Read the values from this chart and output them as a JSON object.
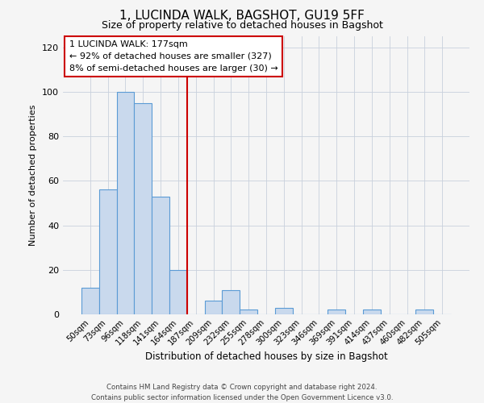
{
  "title": "1, LUCINDA WALK, BAGSHOT, GU19 5FF",
  "subtitle": "Size of property relative to detached houses in Bagshot",
  "xlabel": "Distribution of detached houses by size in Bagshot",
  "ylabel": "Number of detached properties",
  "bar_labels": [
    "50sqm",
    "73sqm",
    "96sqm",
    "118sqm",
    "141sqm",
    "164sqm",
    "187sqm",
    "209sqm",
    "232sqm",
    "255sqm",
    "278sqm",
    "300sqm",
    "323sqm",
    "346sqm",
    "369sqm",
    "391sqm",
    "414sqm",
    "437sqm",
    "460sqm",
    "482sqm",
    "505sqm"
  ],
  "bar_values": [
    12,
    56,
    100,
    95,
    53,
    20,
    0,
    6,
    11,
    2,
    0,
    3,
    0,
    0,
    2,
    0,
    2,
    0,
    0,
    2,
    0
  ],
  "bar_color": "#c9d9ed",
  "bar_edge_color": "#5b9bd5",
  "ylim": [
    0,
    125
  ],
  "yticks": [
    0,
    20,
    40,
    60,
    80,
    100,
    120
  ],
  "vline_x": 5.5,
  "vline_color": "#cc0000",
  "annotation_title": "1 LUCINDA WALK: 177sqm",
  "annotation_line1": "← 92% of detached houses are smaller (327)",
  "annotation_line2": "8% of semi-detached houses are larger (30) →",
  "annotation_box_color": "#cc0000",
  "footer_line1": "Contains HM Land Registry data © Crown copyright and database right 2024.",
  "footer_line2": "Contains public sector information licensed under the Open Government Licence v3.0.",
  "background_color": "#f5f5f5",
  "grid_color": "#c8d0dc"
}
